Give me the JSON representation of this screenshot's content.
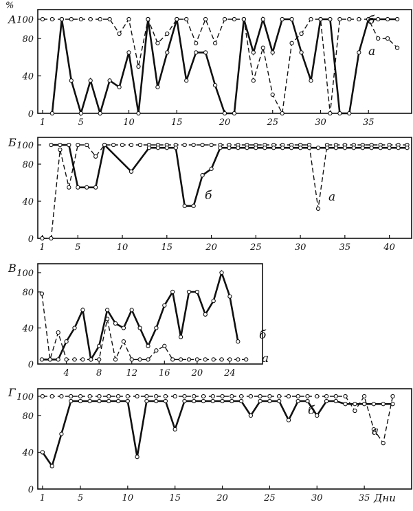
{
  "y_unit": "%",
  "x_unit": "Дни",
  "chart_data": [
    {
      "type": "line",
      "panel": "A",
      "xlim": [
        0.5,
        39.5
      ],
      "ylim": [
        0,
        100
      ],
      "x_ticks": [
        1,
        5,
        10,
        15,
        20,
        25,
        30,
        35
      ],
      "y_ticks": [
        0,
        40,
        80,
        100
      ],
      "y_tick_labels": [
        "0",
        "40",
        "80",
        "100"
      ],
      "series": [
        {
          "name": "а",
          "style": "dashed",
          "x": [
            1,
            2,
            3,
            4,
            5,
            6,
            7,
            8,
            9,
            10,
            11,
            12,
            13,
            14,
            15,
            16,
            17,
            18,
            19,
            20,
            21,
            22,
            23,
            24,
            25,
            26,
            27,
            28,
            29,
            30,
            31,
            32,
            33,
            34,
            35,
            36,
            37,
            38
          ],
          "y": [
            100,
            100,
            100,
            100,
            100,
            100,
            100,
            100,
            85,
            100,
            50,
            100,
            75,
            85,
            100,
            100,
            75,
            100,
            75,
            100,
            100,
            100,
            35,
            70,
            20,
            0,
            75,
            85,
            100,
            100,
            0,
            100,
            100,
            100,
            100,
            80,
            80,
            70
          ]
        },
        {
          "name": "б",
          "style": "solid",
          "x": [
            2,
            3,
            4,
            5,
            6,
            7,
            8,
            9,
            10,
            11,
            12,
            13,
            14,
            15,
            16,
            17,
            18,
            19,
            20,
            21,
            22,
            23,
            24,
            25,
            26,
            27,
            28,
            29,
            30,
            31,
            32,
            33,
            34,
            35,
            36,
            37,
            38
          ],
          "y": [
            0,
            100,
            35,
            0,
            35,
            0,
            35,
            28,
            65,
            0,
            100,
            28,
            65,
            100,
            35,
            65,
            65,
            30,
            0,
            0,
            100,
            65,
            100,
            65,
            100,
            100,
            65,
            35,
            100,
            100,
            0,
            0,
            65,
            100,
            100,
            100,
            100
          ]
        }
      ]
    },
    {
      "type": "line",
      "panel": "Б",
      "xlim": [
        0.5,
        42.5
      ],
      "ylim": [
        0,
        100
      ],
      "x_ticks": [
        1,
        5,
        10,
        15,
        20,
        25,
        30,
        35,
        40
      ],
      "y_ticks": [
        0,
        40,
        80,
        100
      ],
      "y_tick_labels": [
        "0",
        "40",
        "80",
        "100"
      ],
      "series": [
        {
          "name": "а",
          "style": "dashed",
          "x": [
            1,
            2,
            3,
            4,
            5,
            6,
            7,
            8,
            9,
            10,
            11,
            12,
            13,
            14,
            15,
            16,
            17,
            18,
            19,
            20,
            21,
            22,
            23,
            24,
            25,
            26,
            27,
            28,
            29,
            30,
            31,
            32,
            33,
            34,
            35,
            36,
            37,
            38,
            39,
            40,
            41,
            42
          ],
          "y": [
            0,
            0,
            95,
            55,
            100,
            100,
            88,
            100,
            100,
            100,
            100,
            100,
            100,
            100,
            100,
            100,
            100,
            100,
            100,
            100,
            100,
            100,
            100,
            100,
            100,
            100,
            100,
            100,
            100,
            100,
            100,
            32,
            100,
            100,
            100,
            100,
            100,
            100,
            100,
            100,
            100,
            100
          ]
        },
        {
          "name": "б",
          "style": "solid",
          "x": [
            2,
            3,
            4,
            5,
            6,
            7,
            8,
            11,
            13,
            14,
            15,
            16,
            17,
            18,
            19,
            20,
            21,
            22,
            23,
            24,
            25,
            26,
            27,
            28,
            29,
            30,
            31,
            32,
            33,
            34,
            35,
            36,
            37,
            38,
            39,
            40,
            41,
            42
          ],
          "y": [
            100,
            100,
            100,
            55,
            55,
            55,
            100,
            72,
            97,
            97,
            97,
            97,
            35,
            35,
            68,
            75,
            97,
            97,
            97,
            97,
            97,
            97,
            97,
            97,
            97,
            97,
            97,
            97,
            97,
            97,
            97,
            97,
            97,
            97,
            97,
            97,
            97,
            97
          ]
        }
      ]
    },
    {
      "type": "line",
      "panel": "В",
      "xlim": [
        0.5,
        28
      ],
      "ylim": [
        0,
        100
      ],
      "x_ticks": [
        4,
        8,
        12,
        16,
        20,
        24
      ],
      "y_ticks": [
        0,
        40,
        80,
        100
      ],
      "y_tick_labels": [
        "0",
        "40",
        "80",
        "100"
      ],
      "series": [
        {
          "name": "а",
          "style": "dashed",
          "x": [
            1,
            2,
            3,
            4,
            5,
            6,
            7,
            8,
            9,
            10,
            11,
            12,
            13,
            14,
            15,
            16,
            17,
            18,
            19,
            20,
            21,
            22,
            23,
            24,
            25,
            26
          ],
          "y": [
            78,
            5,
            35,
            5,
            5,
            5,
            5,
            5,
            50,
            5,
            25,
            5,
            5,
            5,
            15,
            20,
            5,
            5,
            5,
            5,
            5,
            5,
            5,
            5,
            5,
            5
          ]
        },
        {
          "name": "б",
          "style": "solid",
          "x": [
            1,
            2,
            3,
            4,
            5,
            6,
            7,
            8,
            9,
            10,
            11,
            12,
            13,
            14,
            15,
            16,
            17,
            18,
            19,
            20,
            21,
            22,
            23,
            24,
            25
          ],
          "y": [
            5,
            5,
            5,
            25,
            40,
            60,
            5,
            20,
            60,
            45,
            40,
            60,
            40,
            20,
            40,
            65,
            80,
            30,
            80,
            80,
            55,
            70,
            100,
            75,
            25
          ]
        }
      ]
    },
    {
      "type": "line",
      "panel": "Г",
      "xlim": [
        0.5,
        40
      ],
      "ylim": [
        0,
        100
      ],
      "x_ticks": [
        1,
        5,
        10,
        15,
        20,
        25,
        30,
        35
      ],
      "y_ticks": [
        0,
        40,
        80,
        100
      ],
      "y_tick_labels": [
        "0",
        "40",
        "80",
        "100"
      ],
      "series": [
        {
          "name": "а",
          "style": "dashed",
          "x": [
            1,
            2,
            3,
            4,
            5,
            6,
            7,
            8,
            9,
            10,
            11,
            12,
            13,
            14,
            15,
            16,
            17,
            18,
            19,
            20,
            21,
            22,
            23,
            24,
            25,
            26,
            27,
            28,
            29,
            30,
            31,
            32,
            33,
            34,
            35,
            36,
            37,
            38
          ],
          "y": [
            100,
            100,
            100,
            100,
            100,
            100,
            100,
            100,
            100,
            100,
            100,
            100,
            100,
            100,
            100,
            100,
            100,
            100,
            100,
            100,
            100,
            100,
            100,
            100,
            100,
            100,
            100,
            100,
            100,
            100,
            100,
            100,
            100,
            85,
            100,
            65,
            50,
            100
          ]
        },
        {
          "name": "б",
          "style": "solid",
          "x": [
            1,
            2,
            3,
            4,
            5,
            6,
            7,
            8,
            9,
            10,
            11,
            12,
            13,
            14,
            15,
            16,
            17,
            18,
            19,
            20,
            21,
            22,
            23,
            24,
            25,
            26,
            27,
            28,
            29,
            30,
            31,
            32,
            33,
            34,
            35,
            36,
            37,
            38
          ],
          "y": [
            40,
            25,
            60,
            95,
            95,
            95,
            95,
            95,
            95,
            95,
            35,
            95,
            95,
            95,
            65,
            95,
            95,
            95,
            95,
            95,
            95,
            95,
            80,
            95,
            95,
            95,
            75,
            95,
            95,
            80,
            95,
            95,
            92,
            92,
            92,
            92,
            92,
            92
          ]
        }
      ]
    }
  ]
}
